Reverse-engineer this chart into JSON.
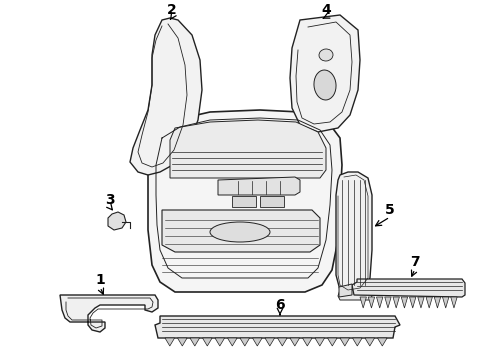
{
  "background_color": "#ffffff",
  "line_color": "#222222",
  "figsize": [
    4.9,
    3.6
  ],
  "dpi": 100,
  "label_fontsize": 10
}
